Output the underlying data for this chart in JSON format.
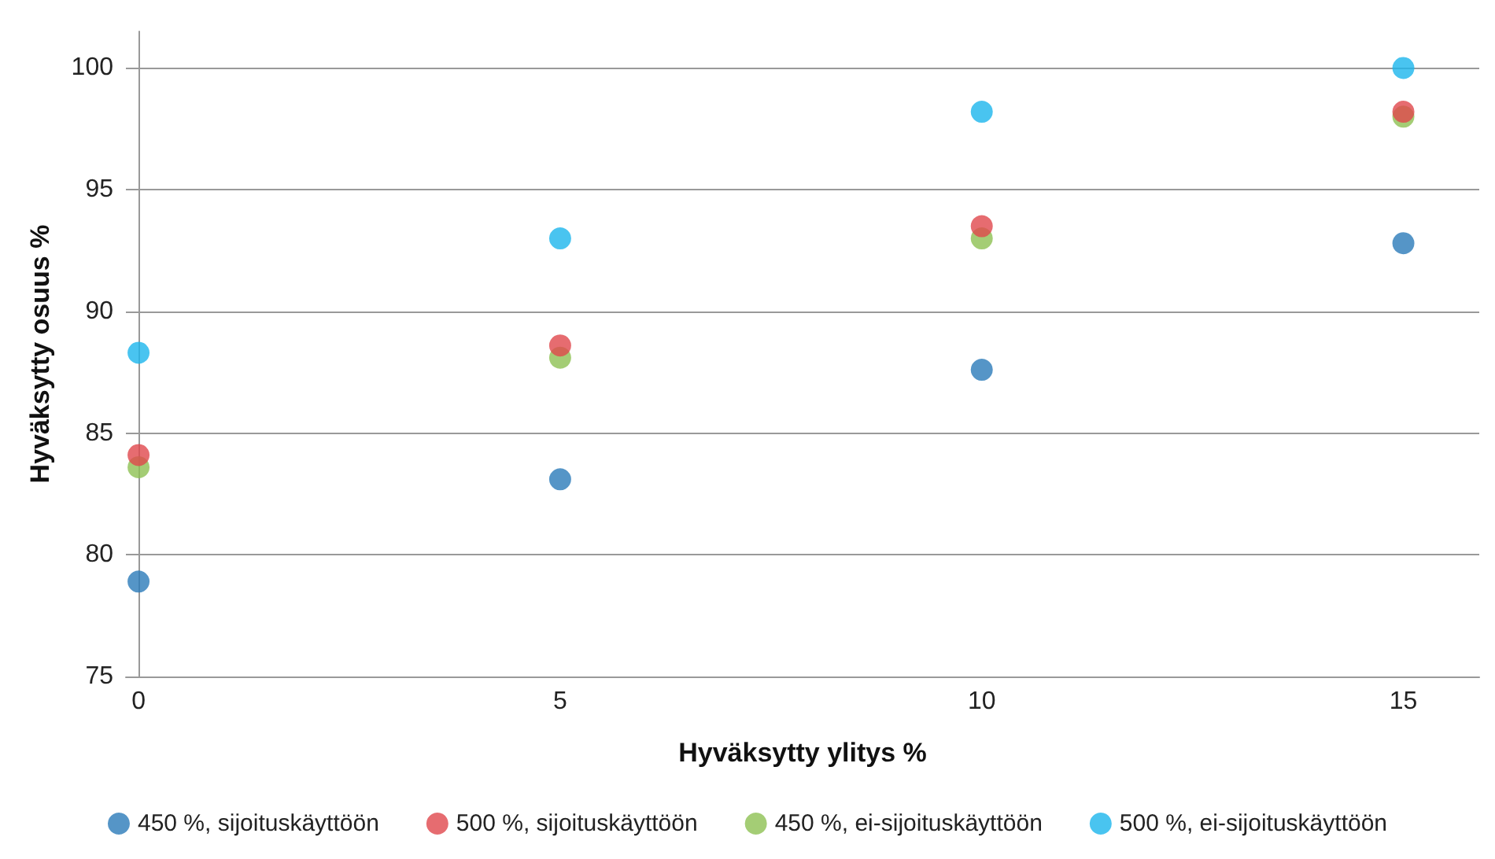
{
  "chart_data": {
    "type": "scatter",
    "xlabel": "Hyväksytty ylitys %",
    "ylabel": "Hyväksytty osuus %",
    "x": [
      0,
      5,
      10,
      15
    ],
    "series": [
      {
        "name": "450 %, sijoituskäyttöön",
        "color": "#2a7ab9",
        "values": [
          78.9,
          83.1,
          87.6,
          92.8
        ]
      },
      {
        "name": "500 %, sijoituskäyttöön",
        "color": "#e0474c",
        "values": [
          84.1,
          88.6,
          93.5,
          98.2
        ]
      },
      {
        "name": "450 %, ei-sijoituskäyttöön",
        "color": "#8dc152",
        "values": [
          83.6,
          88.1,
          93.0,
          98.0
        ]
      },
      {
        "name": "500 %, ei-sijoituskäyttöön",
        "color": "#1bb5ec",
        "values": [
          88.3,
          93.0,
          98.2,
          100
        ]
      }
    ],
    "xlim": [
      -0.15,
      15.9
    ],
    "xticks": [
      0,
      5,
      10,
      15
    ],
    "ylim": [
      75,
      101.5
    ],
    "yticks": [
      75,
      80,
      85,
      90,
      95,
      100
    ],
    "grid": "y",
    "legend": "bottom",
    "marker": "circle"
  }
}
